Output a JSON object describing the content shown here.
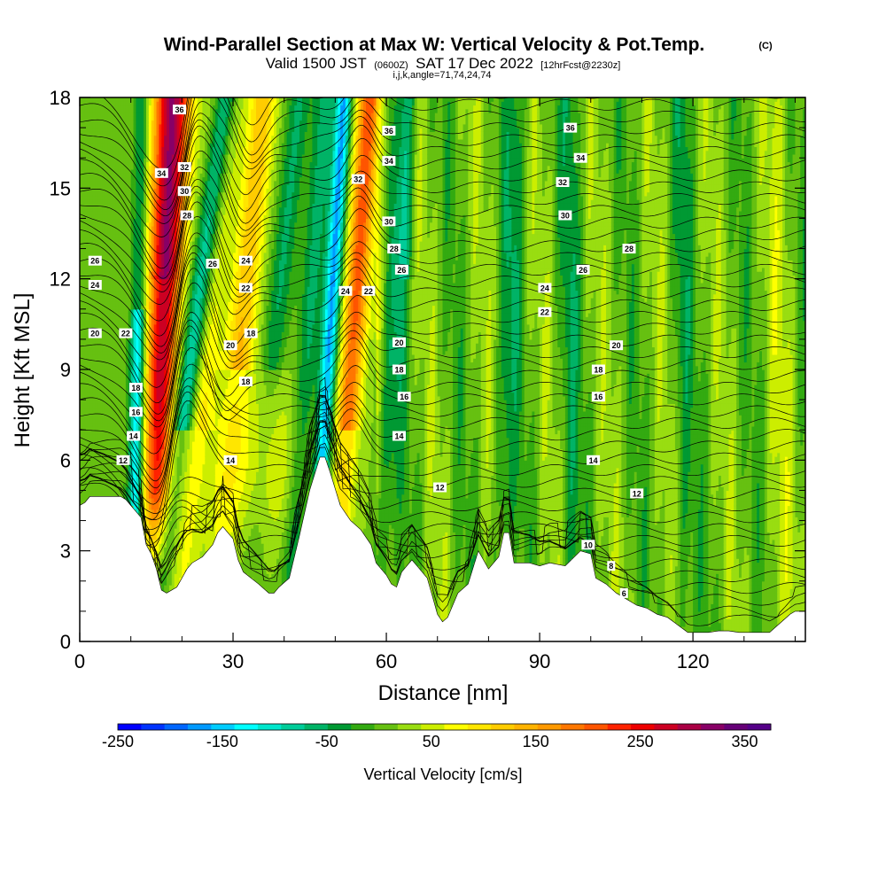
{
  "title": {
    "main": "Wind-Parallel Section at Max W: Vertical Velocity & Pot.Temp.",
    "main_suffix": "(C)",
    "valid_prefix": "Valid 1500 JST",
    "valid_zulu": "(0600Z)",
    "valid_date": "SAT 17 Dec 2022",
    "forecast": "[12hrFcst@2230z]",
    "indices": "i,j,k,angle=71,74,24,74"
  },
  "chart_data": {
    "type": "heatmap",
    "xlabel": "Distance [nm]",
    "ylabel": "Height [Kft MSL]",
    "xlim": [
      0,
      142
    ],
    "ylim": [
      0,
      18
    ],
    "xticks": [
      0,
      30,
      60,
      90,
      120
    ],
    "yticks": [
      0,
      3,
      6,
      9,
      12,
      15,
      18
    ],
    "colorbar": {
      "label": "Vertical Velocity [cm/s]",
      "min": -250,
      "max": 375,
      "step": 25,
      "tick_values": [
        -250,
        -150,
        -50,
        50,
        150,
        250,
        350
      ],
      "tick_labels": [
        "-250",
        "-150",
        "-50",
        "50",
        "150",
        "250",
        "350"
      ],
      "colors": [
        "#0000ff",
        "#0033ff",
        "#0066ff",
        "#0099ff",
        "#00ccff",
        "#00ffff",
        "#00e6cc",
        "#00cc99",
        "#00b366",
        "#009933",
        "#33aa11",
        "#66c011",
        "#99dd11",
        "#ccee00",
        "#ffff00",
        "#ffe600",
        "#ffcc00",
        "#ffb300",
        "#ff9900",
        "#ff7700",
        "#ff5500",
        "#ff2200",
        "#ee0000",
        "#cc0022",
        "#aa0044",
        "#880066",
        "#660077",
        "#550088"
      ]
    },
    "updraft_cores": [
      {
        "x_center": 16,
        "peak_cm_s": 360
      },
      {
        "x_center": 54,
        "peak_cm_s": 200
      }
    ],
    "downdraft_cores": [
      {
        "x_center": 21,
        "peak_cm_s": -160
      },
      {
        "x_center": 48,
        "peak_cm_s": -150
      },
      {
        "x_center": 11,
        "peak_cm_s": -130
      }
    ],
    "terrain_kft": {
      "x": [
        0,
        1,
        2,
        8,
        9,
        12,
        13,
        14,
        15,
        16,
        17,
        19,
        20,
        21,
        22,
        24,
        26,
        27,
        28,
        30,
        31,
        32,
        35,
        37,
        38,
        39,
        41,
        43,
        45,
        47,
        48,
        49,
        51,
        53,
        55,
        57,
        58,
        60,
        61,
        62,
        63,
        65,
        66,
        68,
        69,
        70,
        71,
        72,
        73,
        74,
        76,
        78,
        80,
        82,
        83,
        84,
        85,
        86,
        88,
        90,
        92,
        95,
        98,
        100,
        101,
        103,
        105,
        107,
        109,
        111,
        113,
        115,
        117,
        119,
        121,
        123,
        125,
        127,
        129,
        131,
        133,
        135,
        137,
        139,
        140,
        142
      ],
      "y": [
        4.5,
        4.6,
        4.8,
        4.8,
        4.7,
        4.1,
        3.2,
        2.9,
        2.4,
        1.7,
        1.6,
        1.8,
        2.1,
        2.4,
        2.6,
        2.8,
        3.2,
        3.6,
        3.8,
        3.4,
        2.7,
        2.3,
        1.9,
        1.6,
        1.6,
        1.8,
        2.1,
        3.5,
        5.0,
        6.1,
        6.1,
        5.6,
        4.5,
        4.0,
        3.7,
        3.2,
        2.6,
        2.2,
        1.9,
        1.8,
        2.3,
        2.7,
        2.5,
        2.1,
        1.5,
        0.9,
        0.65,
        0.8,
        1.2,
        1.6,
        1.9,
        3.0,
        2.4,
        2.8,
        3.6,
        3.6,
        2.6,
        2.6,
        2.6,
        2.5,
        2.6,
        2.5,
        3.0,
        2.9,
        2.1,
        1.9,
        1.6,
        1.4,
        1.2,
        1.1,
        0.9,
        0.8,
        0.55,
        0.3,
        0.3,
        0.3,
        0.35,
        0.35,
        0.3,
        0.3,
        0.3,
        0.3,
        0.6,
        0.9,
        1.0,
        1.0
      ]
    },
    "theta_contour_labels": [
      {
        "label": "36",
        "x": 19.5,
        "y": 17.6
      },
      {
        "label": "34",
        "x": 16.0,
        "y": 15.5
      },
      {
        "label": "32",
        "x": 20.5,
        "y": 15.7
      },
      {
        "label": "30",
        "x": 20.5,
        "y": 14.9
      },
      {
        "label": "28",
        "x": 21.0,
        "y": 14.1
      },
      {
        "label": "26",
        "x": 26.0,
        "y": 12.5
      },
      {
        "label": "24",
        "x": 32.5,
        "y": 12.6
      },
      {
        "label": "22",
        "x": 32.5,
        "y": 11.7
      },
      {
        "label": "20",
        "x": 29.5,
        "y": 9.8
      },
      {
        "label": "18",
        "x": 33.5,
        "y": 10.2
      },
      {
        "label": "18",
        "x": 32.5,
        "y": 8.6
      },
      {
        "label": "14",
        "x": 29.5,
        "y": 6.0
      },
      {
        "label": "26",
        "x": 3.0,
        "y": 12.6
      },
      {
        "label": "24",
        "x": 3.0,
        "y": 11.8
      },
      {
        "label": "20",
        "x": 3.0,
        "y": 10.2
      },
      {
        "label": "22",
        "x": 9.0,
        "y": 10.2
      },
      {
        "label": "18",
        "x": 11.0,
        "y": 8.4
      },
      {
        "label": "16",
        "x": 11.0,
        "y": 7.6
      },
      {
        "label": "14",
        "x": 10.5,
        "y": 6.8
      },
      {
        "label": "12",
        "x": 8.5,
        "y": 6.0
      },
      {
        "label": "36",
        "x": 60.5,
        "y": 16.9
      },
      {
        "label": "34",
        "x": 60.5,
        "y": 15.9
      },
      {
        "label": "32",
        "x": 54.5,
        "y": 15.3
      },
      {
        "label": "30",
        "x": 60.5,
        "y": 13.9
      },
      {
        "label": "28",
        "x": 61.5,
        "y": 13.0
      },
      {
        "label": "26",
        "x": 63.0,
        "y": 12.3
      },
      {
        "label": "24",
        "x": 52.0,
        "y": 11.6
      },
      {
        "label": "22",
        "x": 56.5,
        "y": 11.6
      },
      {
        "label": "20",
        "x": 62.5,
        "y": 9.9
      },
      {
        "label": "18",
        "x": 62.5,
        "y": 9.0
      },
      {
        "label": "16",
        "x": 63.5,
        "y": 8.1
      },
      {
        "label": "14",
        "x": 62.5,
        "y": 6.8
      },
      {
        "label": "12",
        "x": 70.5,
        "y": 5.1
      },
      {
        "label": "36",
        "x": 96.0,
        "y": 17.0
      },
      {
        "label": "34",
        "x": 98.0,
        "y": 16.0
      },
      {
        "label": "32",
        "x": 94.5,
        "y": 15.2
      },
      {
        "label": "30",
        "x": 95.0,
        "y": 14.1
      },
      {
        "label": "28",
        "x": 107.5,
        "y": 13.0
      },
      {
        "label": "26",
        "x": 98.5,
        "y": 12.3
      },
      {
        "label": "24",
        "x": 91.0,
        "y": 11.7
      },
      {
        "label": "22",
        "x": 91.0,
        "y": 10.9
      },
      {
        "label": "20",
        "x": 105.0,
        "y": 9.8
      },
      {
        "label": "18",
        "x": 101.5,
        "y": 9.0
      },
      {
        "label": "16",
        "x": 101.5,
        "y": 8.1
      },
      {
        "label": "14",
        "x": 100.5,
        "y": 6.0
      },
      {
        "label": "12",
        "x": 109.0,
        "y": 4.9
      },
      {
        "label": "10",
        "x": 99.5,
        "y": 3.2
      },
      {
        "label": "8",
        "x": 104.0,
        "y": 2.5
      },
      {
        "label": "6",
        "x": 106.5,
        "y": 1.6
      }
    ]
  }
}
